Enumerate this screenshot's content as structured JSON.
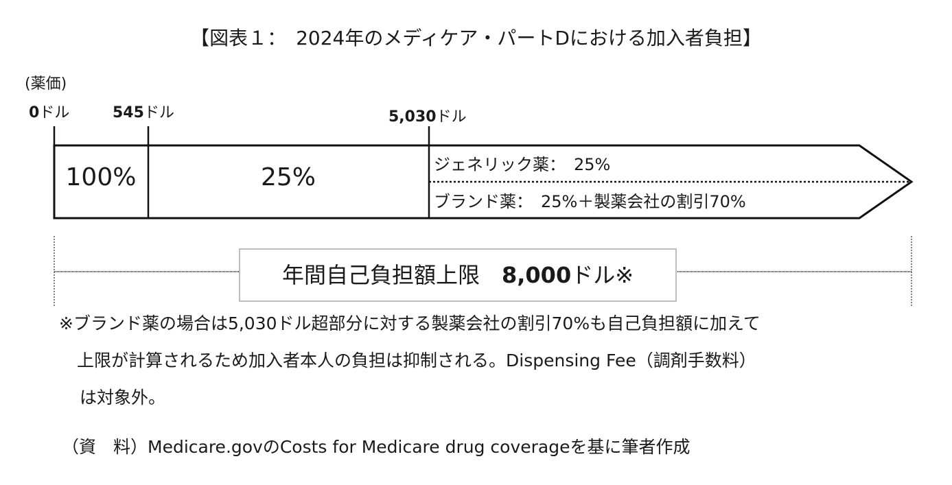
{
  "title": "【図表１：　2024年のメディケア・パートDにおける加入者負担】",
  "axis": {
    "unit_label": "(薬価)",
    "ticks": [
      {
        "value": "0",
        "unit": "ドル"
      },
      {
        "value": "545",
        "unit": "ドル"
      },
      {
        "value": "5,030",
        "unit": "ドル"
      }
    ]
  },
  "segments": {
    "seg1": "100%",
    "seg2": "25%",
    "seg3_generic": "ジェネリック薬：　25%",
    "seg3_brand": "ブランド薬：　25%＋製薬会社の割引70%"
  },
  "cap": {
    "label": "年間自己負担額上限",
    "value": "8,000",
    "unit": "ドル※"
  },
  "notes": [
    "※ブランド薬の場合は5,030ドル超部分に対する製薬会社の割引70%も自己負担額に加えて",
    "上限が計算されるため加入者本人の負担は抑制される。Dispensing Fee（調剤手数料）",
    "は対象外。"
  ],
  "source": "（資　料）Medicare.govのCosts for Medicare drug coverageを基に筆者作成",
  "colors": {
    "line": "#111111",
    "box_border": "#bdbdbd",
    "text": "#1a1a1a"
  }
}
